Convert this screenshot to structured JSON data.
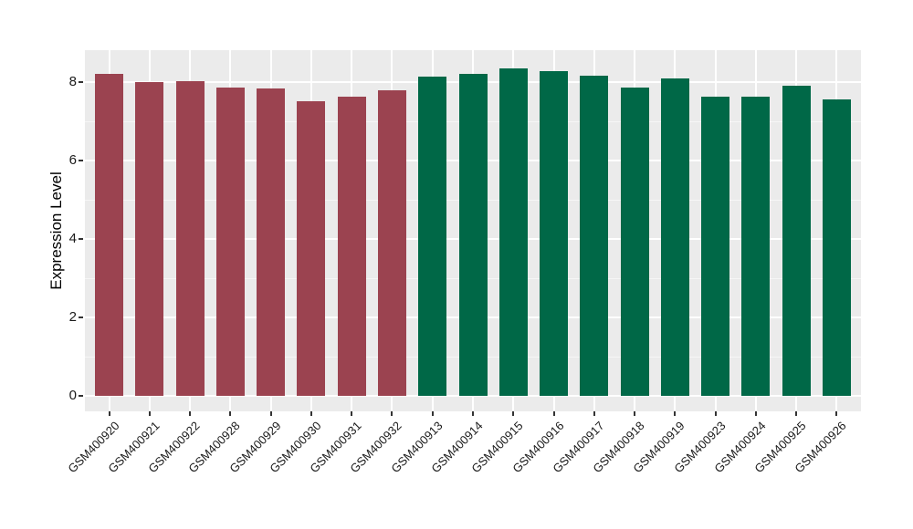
{
  "chart_data": {
    "type": "bar",
    "title": "",
    "xlabel": "",
    "ylabel": "Expression Level",
    "ylim": [
      0,
      8.8
    ],
    "yticks": [
      0,
      2,
      4,
      6,
      8
    ],
    "yminor_ticks": [
      1,
      3,
      5,
      7
    ],
    "grid": "white major+minor horizontal lines and major vertical lines on grey panel",
    "legend_position": "none",
    "categories": [
      "GSM400920",
      "GSM400921",
      "GSM400922",
      "GSM400928",
      "GSM400929",
      "GSM400930",
      "GSM400931",
      "GSM400932",
      "GSM400913",
      "GSM400914",
      "GSM400915",
      "GSM400916",
      "GSM400917",
      "GSM400918",
      "GSM400919",
      "GSM400923",
      "GSM400924",
      "GSM400925",
      "GSM400926"
    ],
    "values": [
      8.21,
      8.0,
      8.03,
      7.87,
      7.84,
      7.52,
      7.62,
      7.8,
      8.13,
      8.2,
      8.36,
      8.27,
      8.17,
      7.86,
      8.1,
      7.63,
      7.63,
      7.9,
      7.55
    ],
    "groups": [
      "red",
      "red",
      "red",
      "red",
      "red",
      "red",
      "red",
      "red",
      "green",
      "green",
      "green",
      "green",
      "green",
      "green",
      "green",
      "green",
      "green",
      "green",
      "green"
    ]
  },
  "colors": {
    "bar_red": "#9B4350",
    "bar_green": "#006847",
    "panel_bg": "#EBEBEB",
    "grid_major": "#ffffff",
    "grid_minor": "#f6f6f6",
    "tick_mark": "#333333",
    "axis_text": "#1a1a1a"
  }
}
